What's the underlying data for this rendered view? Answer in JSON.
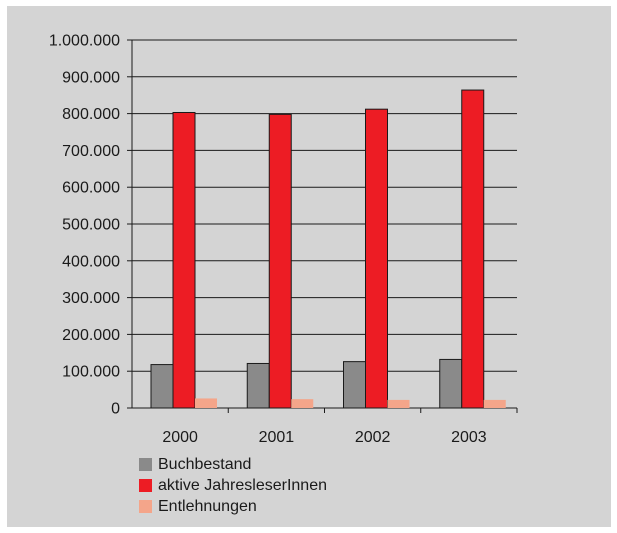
{
  "chart_data": {
    "type": "bar",
    "categories": [
      "2000",
      "2001",
      "2002",
      "2003"
    ],
    "series": [
      {
        "name": "Buchbestand",
        "values": [
          118000,
          121000,
          126000,
          132000
        ],
        "color": "#8a8a8a"
      },
      {
        "name": "aktive JahresleserInnen",
        "values": [
          803000,
          798000,
          812000,
          864000
        ],
        "color": "#ed1c24"
      },
      {
        "name": "Entlehnungen",
        "values": [
          26000,
          24000,
          22000,
          22000
        ],
        "color": "#f4a58a"
      }
    ],
    "y_ticks": [
      "0",
      "100.000",
      "200.000",
      "300.000",
      "400.000",
      "500.000",
      "600.000",
      "700.000",
      "800.000",
      "900.000",
      "1.000.000"
    ],
    "ylim": [
      0,
      1000000
    ],
    "grid": true,
    "legend_position": "bottom-left",
    "title": "",
    "xlabel": "",
    "ylabel": ""
  }
}
